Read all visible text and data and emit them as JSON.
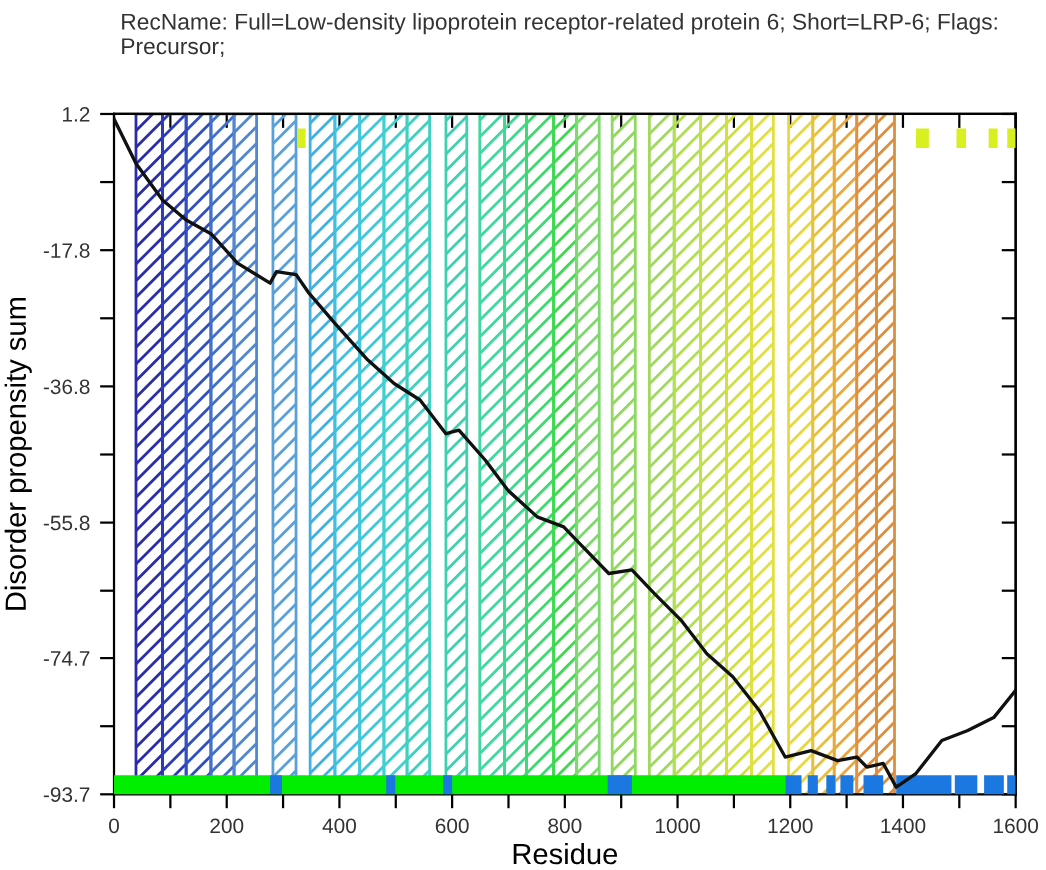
{
  "chart_data": {
    "type": "line",
    "title": "RecName: Full=Low-density lipoprotein receptor-related protein 6; Short=LRP-6; Flags: Precursor;",
    "xlabel": "Residue",
    "ylabel": "Disorder propensity sum",
    "xlim": [
      0,
      1600
    ],
    "ylim": [
      -93.7,
      1.2
    ],
    "xticks": [
      0,
      {
        "value": 100,
        "label": null
      },
      200,
      {
        "value": 300,
        "label": null
      },
      400,
      {
        "value": 500,
        "label": null
      },
      600,
      {
        "value": 700,
        "label": null
      },
      800,
      {
        "value": 900,
        "label": null
      },
      1000,
      {
        "value": 1100,
        "label": null
      },
      1200,
      {
        "value": 1300,
        "label": null
      },
      1400,
      {
        "value": 1500,
        "label": null
      },
      1600
    ],
    "yticks": [
      -93.7,
      {
        "value": -84.2,
        "label": null
      },
      -74.7,
      {
        "value": -65.3,
        "label": null
      },
      -55.8,
      {
        "value": -46.3,
        "label": null
      },
      -36.8,
      {
        "value": -27.3,
        "label": null
      },
      -17.8,
      {
        "value": -8.3,
        "label": null
      },
      1.2
    ],
    "grid": false,
    "legend": false,
    "line_style": "solid",
    "marker": "none",
    "series": [
      {
        "color": "#00ee00",
        "type": "step",
        "x": [
          0,
          1191
        ],
        "values": [
          -92.4,
          -92.4
        ]
      },
      {
        "color": "#1a78e0",
        "type": "step",
        "x": [
          277,
          298,
          null,
          483,
          499,
          null,
          584,
          600,
          null,
          876,
          919,
          null,
          1191,
          1220,
          null,
          1231,
          1249,
          null,
          1264,
          1280,
          null,
          1289,
          1312,
          null,
          1330,
          1365,
          null,
          1388,
          1486,
          null,
          1492,
          1532,
          null,
          1544,
          1579,
          null,
          1585,
          1600
        ],
        "values": [
          -92.4,
          -92.4,
          null,
          -92.4,
          -92.4,
          null,
          -92.4,
          -92.4,
          null,
          -92.4,
          -92.4,
          null,
          -92.4,
          -92.4,
          null,
          -92.4,
          -92.4,
          null,
          -92.4,
          -92.4,
          null,
          -92.4,
          -92.4,
          null,
          -92.4,
          -92.4,
          null,
          -92.4,
          -92.4,
          null,
          -92.4,
          -92.4,
          null,
          -92.4,
          -92.4,
          null,
          -92.4,
          -92.4
        ]
      },
      {
        "color": "#d8f020",
        "type": "step",
        "x": [
          325,
          340,
          null,
          1423,
          1446,
          null,
          1495,
          1512,
          null,
          1552,
          1568,
          null,
          1585,
          1600
        ],
        "values": [
          -2.2,
          -2.2,
          null,
          -2.2,
          -2.2,
          null,
          -2.2,
          -2.2,
          null,
          -2.2,
          -2.2,
          null,
          -2.2,
          -2.2
        ]
      },
      {
        "color": "#111111",
        "x": [
          0,
          39,
          86,
          128,
          172,
          219,
          277,
          288,
          323,
          346,
          392,
          450,
          497,
          543,
          589,
          612,
          659,
          699,
          751,
          798,
          826,
          878,
          919,
          959,
          1006,
          1052,
          1098,
          1145,
          1191,
          1237,
          1284,
          1318,
          1336,
          1365,
          1388,
          1423,
          1469,
          1515,
          1561,
          1600
        ],
        "values": [
          0.5,
          -5.7,
          -10.8,
          -13.6,
          -15.5,
          -19.6,
          -22.4,
          -20.8,
          -21.2,
          -23.8,
          -28.0,
          -33.1,
          -36.4,
          -38.7,
          -43.4,
          -42.9,
          -47.1,
          -51.3,
          -55.0,
          -56.4,
          -58.7,
          -62.9,
          -62.4,
          -65.7,
          -69.4,
          -74.1,
          -77.3,
          -82.0,
          -88.5,
          -87.6,
          -89.0,
          -88.5,
          -89.9,
          -89.4,
          -92.7,
          -90.8,
          -86.2,
          -84.8,
          -83.0,
          -79.2
        ]
      }
    ],
    "bands": [
      {
        "axis": "x",
        "from": 39,
        "to": 86,
        "color": "#2a2ca8"
      },
      {
        "axis": "x",
        "from": 86,
        "to": 128,
        "color": "#2c3cb8"
      },
      {
        "axis": "x",
        "from": 128,
        "to": 172,
        "color": "#3050c0"
      },
      {
        "axis": "x",
        "from": 172,
        "to": 213,
        "color": "#4070c8"
      },
      {
        "axis": "x",
        "from": 213,
        "to": 253,
        "color": "#5088d0"
      },
      {
        "axis": "x",
        "from": 282,
        "to": 323,
        "color": "#5aa0d8"
      },
      {
        "axis": "x",
        "from": 348,
        "to": 392,
        "color": "#40b0e0"
      },
      {
        "axis": "x",
        "from": 392,
        "to": 436,
        "color": "#40c0e0"
      },
      {
        "axis": "x",
        "from": 436,
        "to": 479,
        "color": "#40c8d8"
      },
      {
        "axis": "x",
        "from": 479,
        "to": 520,
        "color": "#40d0d0"
      },
      {
        "axis": "x",
        "from": 520,
        "to": 560,
        "color": "#40d0c0"
      },
      {
        "axis": "x",
        "from": 589,
        "to": 626,
        "color": "#40d0b0"
      },
      {
        "axis": "x",
        "from": 649,
        "to": 693,
        "color": "#40d8a0"
      },
      {
        "axis": "x",
        "from": 693,
        "to": 732,
        "color": "#40d890"
      },
      {
        "axis": "x",
        "from": 732,
        "to": 780,
        "color": "#40d870"
      },
      {
        "axis": "x",
        "from": 780,
        "to": 821,
        "color": "#40d850"
      },
      {
        "axis": "x",
        "from": 821,
        "to": 861,
        "color": "#80d870"
      },
      {
        "axis": "x",
        "from": 884,
        "to": 925,
        "color": "#90d860"
      },
      {
        "axis": "x",
        "from": 950,
        "to": 994,
        "color": "#a0d860"
      },
      {
        "axis": "x",
        "from": 994,
        "to": 1041,
        "color": "#b0e050"
      },
      {
        "axis": "x",
        "from": 1041,
        "to": 1087,
        "color": "#c0e050"
      },
      {
        "axis": "x",
        "from": 1087,
        "to": 1131,
        "color": "#d0e040"
      },
      {
        "axis": "x",
        "from": 1131,
        "to": 1170,
        "color": "#e0e040"
      },
      {
        "axis": "x",
        "from": 1197,
        "to": 1240,
        "color": "#e8d840"
      },
      {
        "axis": "x",
        "from": 1240,
        "to": 1278,
        "color": "#e8c040"
      },
      {
        "axis": "x",
        "from": 1278,
        "to": 1318,
        "color": "#e8a840"
      },
      {
        "axis": "x",
        "from": 1318,
        "to": 1353,
        "color": "#e09040"
      },
      {
        "axis": "x",
        "from": 1353,
        "to": 1385,
        "color": "#d89040"
      }
    ]
  }
}
